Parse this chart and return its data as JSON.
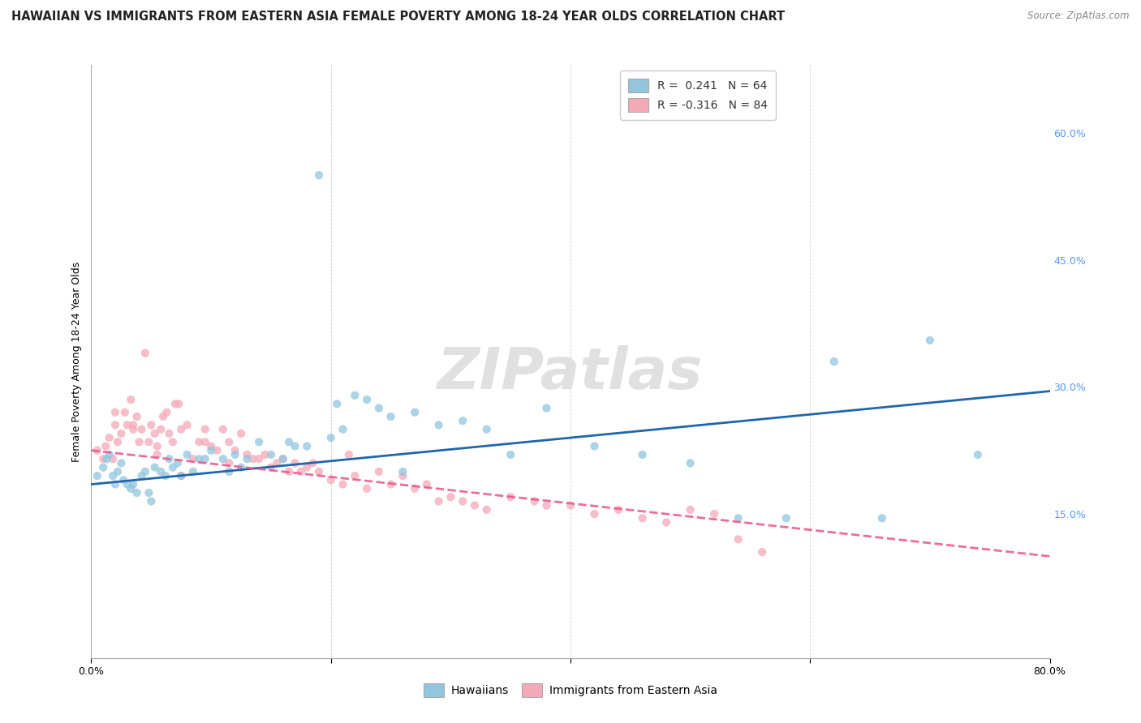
{
  "title": "HAWAIIAN VS IMMIGRANTS FROM EASTERN ASIA FEMALE POVERTY AMONG 18-24 YEAR OLDS CORRELATION CHART",
  "source": "Source: ZipAtlas.com",
  "ylabel": "Female Poverty Among 18-24 Year Olds",
  "right_ytick_vals": [
    0.15,
    0.3,
    0.45,
    0.6
  ],
  "right_ytick_labels": [
    "15.0%",
    "30.0%",
    "45.0%",
    "60.0%"
  ],
  "xlim": [
    0.0,
    0.8
  ],
  "ylim": [
    -0.02,
    0.68
  ],
  "hawaiian_color": "#92c5de",
  "eastern_asia_color": "#f4a9b8",
  "hawaiian_line_color": "#2166ac",
  "eastern_line_color": "#e8558a",
  "hawaiian_R": "0.241",
  "hawaiian_N": "64",
  "eastern_asia_R": "-0.316",
  "eastern_asia_N": "84",
  "legend_label_1": "Hawaiians",
  "legend_label_2": "Immigrants from Eastern Asia",
  "watermark_text": "ZIPatlas",
  "hawaiian_scatter_x": [
    0.005,
    0.01,
    0.013,
    0.015,
    0.018,
    0.02,
    0.022,
    0.025,
    0.027,
    0.03,
    0.033,
    0.035,
    0.038,
    0.042,
    0.045,
    0.048,
    0.05,
    0.053,
    0.058,
    0.062,
    0.065,
    0.068,
    0.072,
    0.075,
    0.08,
    0.085,
    0.09,
    0.095,
    0.1,
    0.11,
    0.115,
    0.12,
    0.125,
    0.13,
    0.14,
    0.15,
    0.16,
    0.165,
    0.17,
    0.18,
    0.2,
    0.21,
    0.22,
    0.23,
    0.25,
    0.27,
    0.29,
    0.31,
    0.33,
    0.35,
    0.38,
    0.42,
    0.46,
    0.5,
    0.54,
    0.58,
    0.62,
    0.66,
    0.7,
    0.74,
    0.19,
    0.205,
    0.24,
    0.26
  ],
  "hawaiian_scatter_y": [
    0.195,
    0.205,
    0.215,
    0.22,
    0.195,
    0.185,
    0.2,
    0.21,
    0.19,
    0.185,
    0.18,
    0.185,
    0.175,
    0.195,
    0.2,
    0.175,
    0.165,
    0.205,
    0.2,
    0.195,
    0.215,
    0.205,
    0.21,
    0.195,
    0.22,
    0.2,
    0.215,
    0.215,
    0.225,
    0.215,
    0.2,
    0.22,
    0.205,
    0.215,
    0.235,
    0.22,
    0.215,
    0.235,
    0.23,
    0.23,
    0.24,
    0.25,
    0.29,
    0.285,
    0.265,
    0.27,
    0.255,
    0.26,
    0.25,
    0.22,
    0.275,
    0.23,
    0.22,
    0.21,
    0.145,
    0.145,
    0.33,
    0.145,
    0.355,
    0.22,
    0.55,
    0.28,
    0.275,
    0.2
  ],
  "eastern_asia_scatter_x": [
    0.005,
    0.01,
    0.012,
    0.015,
    0.018,
    0.02,
    0.022,
    0.025,
    0.028,
    0.03,
    0.033,
    0.035,
    0.038,
    0.04,
    0.042,
    0.045,
    0.048,
    0.05,
    0.053,
    0.055,
    0.058,
    0.06,
    0.063,
    0.065,
    0.068,
    0.07,
    0.073,
    0.075,
    0.08,
    0.085,
    0.09,
    0.095,
    0.1,
    0.105,
    0.11,
    0.115,
    0.12,
    0.125,
    0.13,
    0.135,
    0.14,
    0.145,
    0.15,
    0.155,
    0.16,
    0.165,
    0.17,
    0.175,
    0.18,
    0.185,
    0.19,
    0.2,
    0.21,
    0.215,
    0.22,
    0.23,
    0.24,
    0.25,
    0.26,
    0.27,
    0.28,
    0.29,
    0.3,
    0.31,
    0.32,
    0.33,
    0.35,
    0.37,
    0.38,
    0.4,
    0.42,
    0.44,
    0.46,
    0.48,
    0.5,
    0.52,
    0.54,
    0.56,
    0.02,
    0.035,
    0.055,
    0.075,
    0.095,
    0.115
  ],
  "eastern_asia_scatter_y": [
    0.225,
    0.215,
    0.23,
    0.24,
    0.215,
    0.255,
    0.235,
    0.245,
    0.27,
    0.255,
    0.285,
    0.255,
    0.265,
    0.235,
    0.25,
    0.34,
    0.235,
    0.255,
    0.245,
    0.23,
    0.25,
    0.265,
    0.27,
    0.245,
    0.235,
    0.28,
    0.28,
    0.25,
    0.255,
    0.215,
    0.235,
    0.235,
    0.23,
    0.225,
    0.25,
    0.235,
    0.225,
    0.245,
    0.22,
    0.215,
    0.215,
    0.22,
    0.205,
    0.21,
    0.215,
    0.2,
    0.21,
    0.2,
    0.205,
    0.21,
    0.2,
    0.19,
    0.185,
    0.22,
    0.195,
    0.18,
    0.2,
    0.185,
    0.195,
    0.18,
    0.185,
    0.165,
    0.17,
    0.165,
    0.16,
    0.155,
    0.17,
    0.165,
    0.16,
    0.16,
    0.15,
    0.155,
    0.145,
    0.14,
    0.155,
    0.15,
    0.12,
    0.105,
    0.27,
    0.25,
    0.22,
    0.195,
    0.25,
    0.21
  ],
  "hawaiian_line_x": [
    0.0,
    0.8
  ],
  "hawaiian_line_y": [
    0.185,
    0.295
  ],
  "eastern_line_x": [
    0.0,
    0.8
  ],
  "eastern_line_y": [
    0.225,
    0.1
  ],
  "background_color": "#ffffff",
  "grid_color": "#d0d0d0",
  "title_fontsize": 10.5,
  "source_fontsize": 8.5,
  "axis_label_fontsize": 9,
  "tick_fontsize": 9,
  "legend_fontsize": 10,
  "watermark_fontsize": 52,
  "watermark_color": "#e0e0e0",
  "right_tick_color": "#5599ff",
  "scatter_size": 55,
  "scatter_alpha": 0.75
}
